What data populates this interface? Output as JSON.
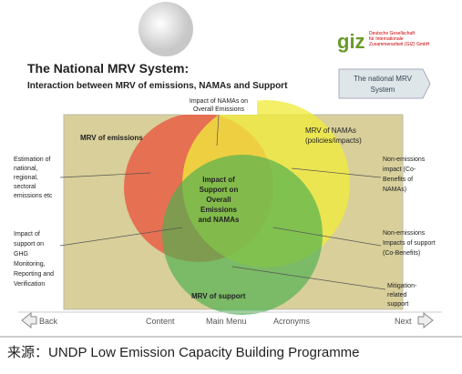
{
  "header": {
    "logo": "giz",
    "logo_subtitle": [
      "Deutsche Gesellschaft",
      "für Internationale",
      "Zusammenarbeit (GIZ) GmbH"
    ],
    "title": "The National MRV System:",
    "subtitle": "Interaction between MRV of emissions, NAMAs and Support",
    "side_button": [
      "The national MRV",
      "System"
    ]
  },
  "diagram": {
    "top_label": [
      "Impact of NAMAs on",
      "Overall Emissions"
    ],
    "emissions": "MRV of emissions",
    "namas": [
      "MRV of NAMAs",
      "(policies/impacts)"
    ],
    "center": [
      "Impact of",
      "Support on",
      "Overall",
      "Emissions",
      "and NAMAs"
    ],
    "support": "MRV of support",
    "left_labels": [
      [
        "Estimation of",
        "national,",
        "regional,",
        "sectoral",
        "emissions etc"
      ],
      [
        "Impact of",
        "support on",
        "GHG",
        "Monitoring,",
        "Reporting and",
        "Verification"
      ]
    ],
    "right_labels": [
      [
        "Non-emissions",
        "impact (Co-",
        "Benefits of",
        "NAMAs)"
      ],
      [
        "Non-emissions",
        "Impacts of support",
        "(Co-Benefits)"
      ],
      [
        "Mitigation-",
        "related",
        "support"
      ]
    ]
  },
  "nav": {
    "back": "Back",
    "content": "Content",
    "main_menu": "Main Menu",
    "acronyms": "Acronyms",
    "next": "Next"
  },
  "caption": "来源：UNDP Low Emission Capacity Building Programme"
}
